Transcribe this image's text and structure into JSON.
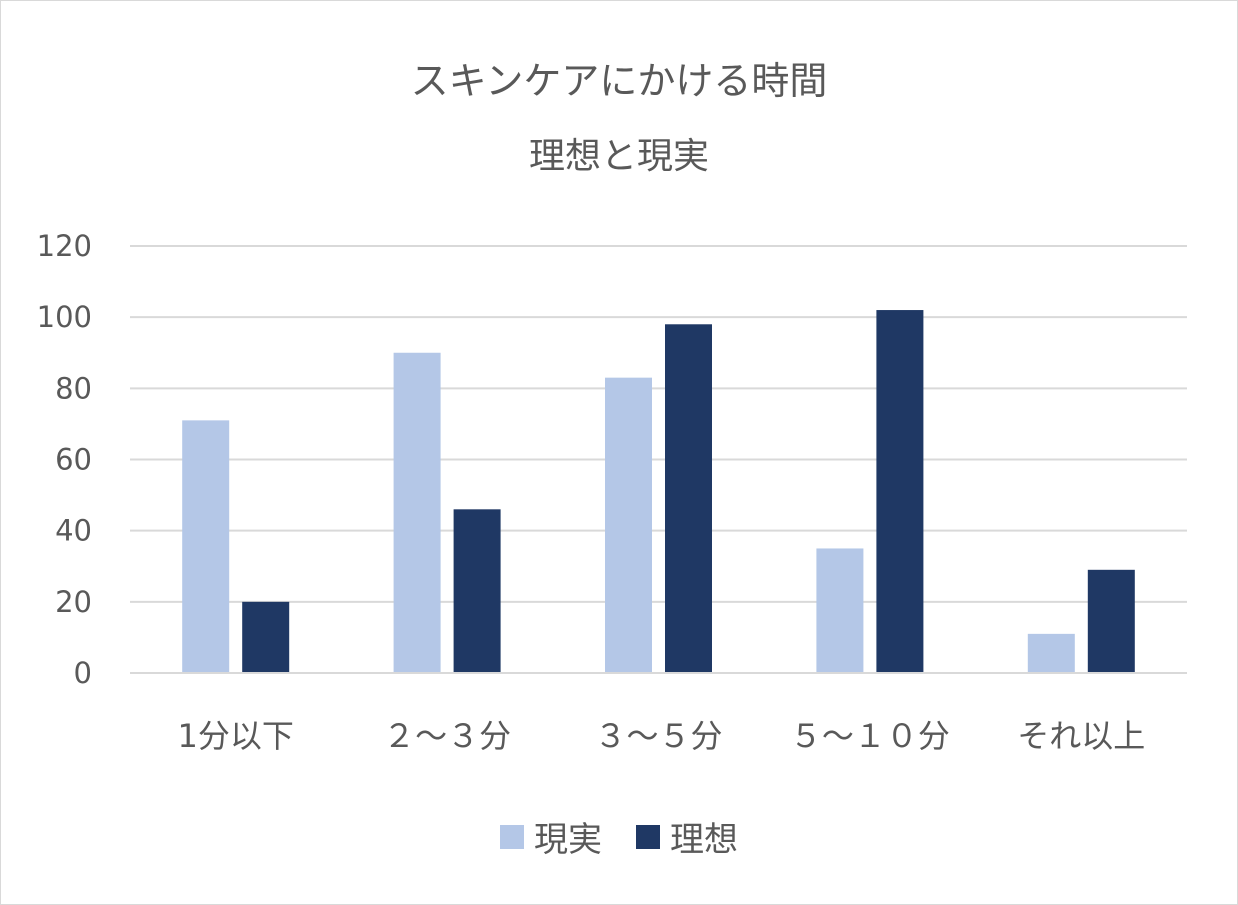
{
  "chart_data": {
    "type": "bar",
    "title": "スキンケアにかける時間",
    "subtitle": "理想と現実",
    "categories": [
      "1分以下",
      "２～３分",
      "３～５分",
      "５～１０分",
      "それ以上"
    ],
    "series": [
      {
        "name": "現実",
        "color": "#b4c7e7",
        "values": [
          71,
          90,
          83,
          35,
          11
        ]
      },
      {
        "name": "理想",
        "color": "#1f3864",
        "values": [
          20,
          46,
          98,
          102,
          29
        ]
      }
    ],
    "ylim": [
      0,
      120
    ],
    "yticks": [
      0,
      20,
      40,
      60,
      80,
      100,
      120
    ],
    "grid": true,
    "legend_position": "bottom"
  }
}
